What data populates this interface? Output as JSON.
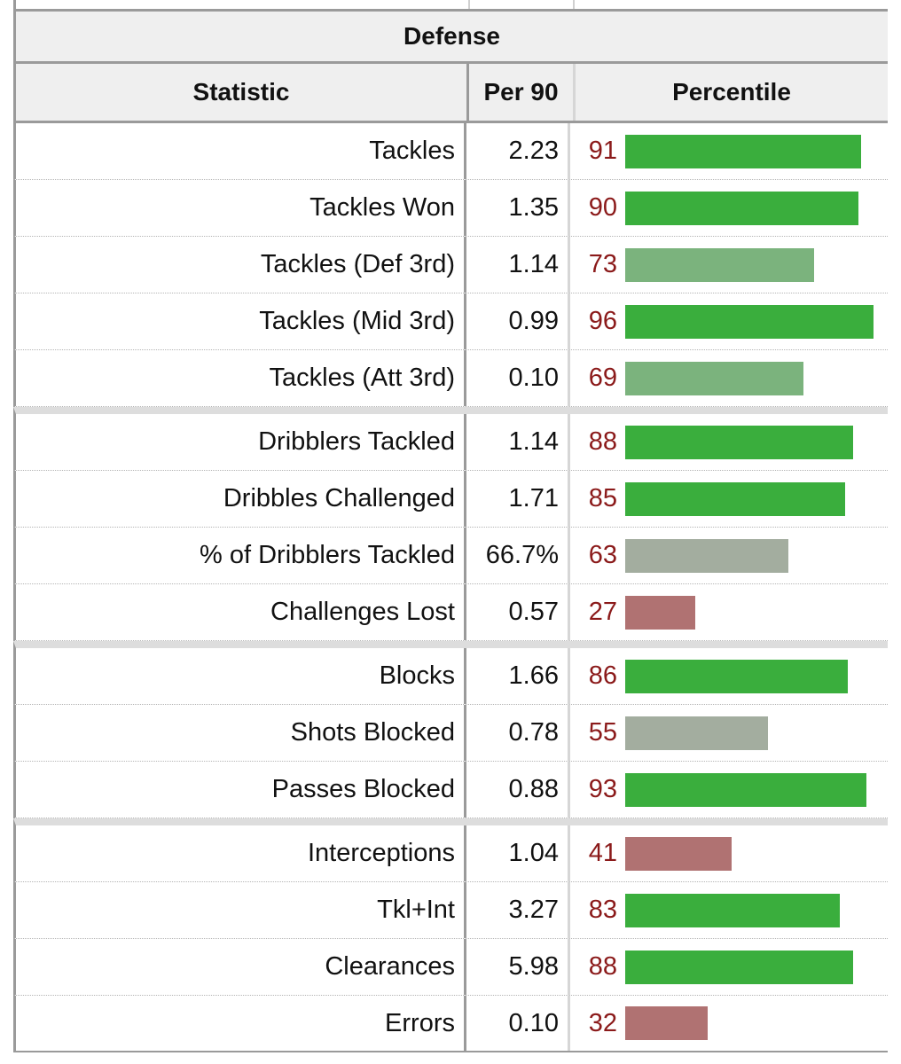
{
  "section_title": "Defense",
  "columns": {
    "statistic": "Statistic",
    "per90": "Per 90",
    "percentile": "Percentile"
  },
  "colors": {
    "percentile_text": "#8b1a1a",
    "bar_high": "#3aae3d",
    "bar_mid": "#7bb37d",
    "bar_neutral": "#a3ad9f",
    "bar_low": "#b07272"
  },
  "rows": [
    {
      "label": "Tackles",
      "per90": "2.23",
      "percentile": "91",
      "group_start": false
    },
    {
      "label": "Tackles Won",
      "per90": "1.35",
      "percentile": "90",
      "group_start": false
    },
    {
      "label": "Tackles (Def 3rd)",
      "per90": "1.14",
      "percentile": "73",
      "group_start": false
    },
    {
      "label": "Tackles (Mid 3rd)",
      "per90": "0.99",
      "percentile": "96",
      "group_start": false
    },
    {
      "label": "Tackles (Att 3rd)",
      "per90": "0.10",
      "percentile": "69",
      "group_start": false
    },
    {
      "label": "Dribblers Tackled",
      "per90": "1.14",
      "percentile": "88",
      "group_start": true
    },
    {
      "label": "Dribbles Challenged",
      "per90": "1.71",
      "percentile": "85",
      "group_start": false
    },
    {
      "label": "% of Dribblers Tackled",
      "per90": "66.7%",
      "percentile": "63",
      "group_start": false
    },
    {
      "label": "Challenges Lost",
      "per90": "0.57",
      "percentile": "27",
      "group_start": false
    },
    {
      "label": "Blocks",
      "per90": "1.66",
      "percentile": "86",
      "group_start": true
    },
    {
      "label": "Shots Blocked",
      "per90": "0.78",
      "percentile": "55",
      "group_start": false
    },
    {
      "label": "Passes Blocked",
      "per90": "0.88",
      "percentile": "93",
      "group_start": false
    },
    {
      "label": "Interceptions",
      "per90": "1.04",
      "percentile": "41",
      "group_start": true
    },
    {
      "label": "Tkl+Int",
      "per90": "3.27",
      "percentile": "83",
      "group_start": false
    },
    {
      "label": "Clearances",
      "per90": "5.98",
      "percentile": "88",
      "group_start": false
    },
    {
      "label": "Errors",
      "per90": "0.10",
      "percentile": "32",
      "group_start": false
    }
  ]
}
